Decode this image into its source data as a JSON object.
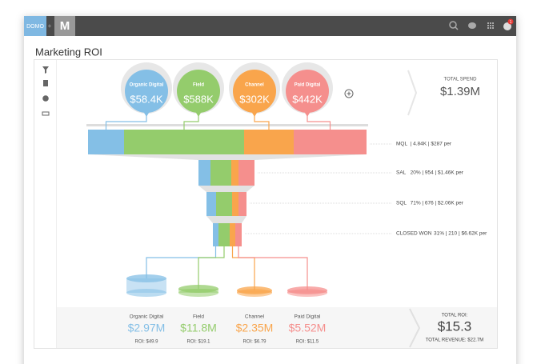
{
  "header": {
    "logo": "DOMO",
    "logo_m": "M",
    "badge": "1"
  },
  "title": "Marketing ROI",
  "channels": [
    {
      "name": "Organic Digital",
      "spend": "$58.4K",
      "revenue": "$2.97M",
      "roi": "ROI: $49.9",
      "color": "#84bfe6"
    },
    {
      "name": "Field",
      "spend": "$588K",
      "revenue": "$11.8M",
      "roi": "ROI: $19.1",
      "color": "#94cc6c"
    },
    {
      "name": "Channel",
      "spend": "$302K",
      "revenue": "$2.35M",
      "roi": "ROI: $6.79",
      "color": "#f9a54c"
    },
    {
      "name": "Paid Digital",
      "spend": "$442K",
      "revenue": "$5.52M",
      "roi": "ROI: $11.5",
      "color": "#f58f8d"
    }
  ],
  "total_spend": {
    "label": "TOTAL SPEND",
    "value": "$1.39M"
  },
  "stages": [
    {
      "name": "MQL",
      "stats": "| 4.84K | $287 per"
    },
    {
      "name": "SAL",
      "stats": "20% | 954 | $1.46K per"
    },
    {
      "name": "SQL",
      "stats": "71% | 676 | $2.06K per"
    },
    {
      "name": "CLOSED WON",
      "stats": "31% | 210 | $6.62K per"
    }
  ],
  "total_roi": {
    "label": "TOTAL ROI:",
    "value": "$15.3",
    "revenue": "TOTAL REVENUE: $22.7M"
  }
}
